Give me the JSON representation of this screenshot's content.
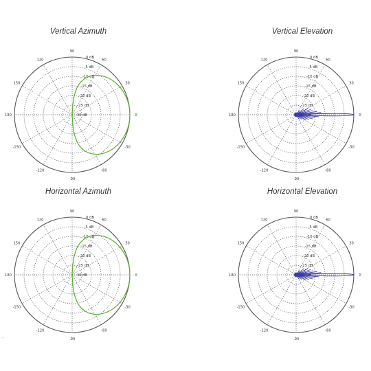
{
  "colors": {
    "grid": "#555555",
    "azimuth": "#58b02c",
    "elevation": "#3a3aa8"
  },
  "chart_data": [
    {
      "type": "polar",
      "title": "Vertical Azimuth",
      "radial_unit": "dB",
      "radial_range": [
        -30,
        0
      ],
      "radial_ticks": [
        "0 dB",
        "-5 dB",
        "-10 dB",
        "-15 dB",
        "-20 dB",
        "-25 dB",
        "-30 dB"
      ],
      "angle_ticks": [
        "0",
        "30",
        "60",
        "90",
        "120",
        "150",
        "180",
        "-150",
        "-120",
        "-90",
        "-60",
        "-30"
      ],
      "angle_tick_values": [
        0,
        30,
        60,
        90,
        120,
        150,
        180,
        -150,
        -120,
        -90,
        -60,
        -30
      ],
      "pattern": "directional",
      "series": [
        {
          "color": "azimuth",
          "points": [
            [
              0,
              0
            ],
            [
              15,
              -0.7
            ],
            [
              30,
              -2.5
            ],
            [
              45,
              -5.5
            ],
            [
              60,
              -10
            ],
            [
              75,
              -17
            ],
            [
              90,
              -30
            ],
            [
              -75,
              -17
            ],
            [
              -60,
              -10
            ],
            [
              -45,
              -5.5
            ],
            [
              -30,
              -2.5
            ],
            [
              -15,
              -0.7
            ]
          ]
        }
      ]
    },
    {
      "type": "polar",
      "title": "Vertical Elevation",
      "radial_unit": "dB",
      "radial_range": [
        -30,
        0
      ],
      "radial_ticks": [
        "0 dB",
        "-5 dB",
        "-10 dB",
        "-15 dB",
        "-20 dB",
        "-25 dB",
        "-30 dB"
      ],
      "angle_ticks": [
        "0",
        "30",
        "60",
        "90",
        "120",
        "150",
        "180",
        "-150",
        "-120",
        "-90",
        "-60",
        "-30"
      ],
      "angle_tick_values": [
        0,
        30,
        60,
        90,
        120,
        150,
        180,
        -150,
        -120,
        -90,
        -60,
        -30
      ],
      "pattern": "high-gain",
      "series": [
        {
          "color": "elevation",
          "main_lobe_width_deg": 3,
          "side_lobes": [
            [
              5,
              -17
            ],
            [
              -5,
              -18
            ],
            [
              9,
              -19
            ],
            [
              -9,
              -20
            ],
            [
              14,
              -21
            ],
            [
              -14,
              -21
            ],
            [
              20,
              -22
            ],
            [
              -20,
              -23
            ],
            [
              28,
              -23
            ],
            [
              -28,
              -24
            ],
            [
              38,
              -25
            ],
            [
              -38,
              -26
            ],
            [
              52,
              -27
            ],
            [
              -55,
              -27
            ]
          ]
        }
      ]
    },
    {
      "type": "polar",
      "title": "Horizontal Azimuth",
      "radial_unit": "dB",
      "radial_range": [
        -30,
        0
      ],
      "radial_ticks": [
        "0 dB",
        "-5 dB",
        "-10 dB",
        "-15 dB",
        "-20 dB",
        "-25 dB",
        "-30 dB"
      ],
      "angle_ticks": [
        "0",
        "30",
        "60",
        "90",
        "120",
        "150",
        "180",
        "-150",
        "-120",
        "-90",
        "-60",
        "-30"
      ],
      "angle_tick_values": [
        0,
        30,
        60,
        90,
        120,
        150,
        180,
        -150,
        -120,
        -90,
        -60,
        -30
      ],
      "pattern": "directional",
      "series": [
        {
          "color": "azimuth",
          "points": [
            [
              0,
              0
            ],
            [
              15,
              -0.7
            ],
            [
              30,
              -2.5
            ],
            [
              45,
              -5.5
            ],
            [
              60,
              -10
            ],
            [
              75,
              -17
            ],
            [
              90,
              -30
            ],
            [
              -75,
              -17
            ],
            [
              -60,
              -10
            ],
            [
              -45,
              -5.5
            ],
            [
              -30,
              -2.5
            ],
            [
              -15,
              -0.7
            ]
          ]
        }
      ]
    },
    {
      "type": "polar",
      "title": "Horizontal Elevation",
      "radial_unit": "dB",
      "radial_range": [
        -30,
        0
      ],
      "radial_ticks": [
        "0 dB",
        "-5 dB",
        "-10 dB",
        "-15 dB",
        "-20 dB",
        "-25 dB",
        "-30 dB"
      ],
      "angle_ticks": [
        "0",
        "30",
        "60",
        "90",
        "120",
        "150",
        "180",
        "-150",
        "-120",
        "-90",
        "-60",
        "-30"
      ],
      "angle_tick_values": [
        0,
        30,
        60,
        90,
        120,
        150,
        180,
        -150,
        -120,
        -90,
        -60,
        -30
      ],
      "pattern": "high-gain",
      "series": [
        {
          "color": "elevation",
          "main_lobe_width_deg": 3,
          "side_lobes": [
            [
              5,
              -17
            ],
            [
              -5,
              -18
            ],
            [
              9,
              -19
            ],
            [
              -9,
              -20
            ],
            [
              14,
              -21
            ],
            [
              -14,
              -21
            ],
            [
              20,
              -22
            ],
            [
              -20,
              -23
            ],
            [
              28,
              -23
            ],
            [
              -28,
              -24
            ],
            [
              38,
              -25
            ],
            [
              -38,
              -26
            ],
            [
              52,
              -27
            ],
            [
              -55,
              -27
            ]
          ]
        }
      ]
    }
  ],
  "stray_mark": "-"
}
